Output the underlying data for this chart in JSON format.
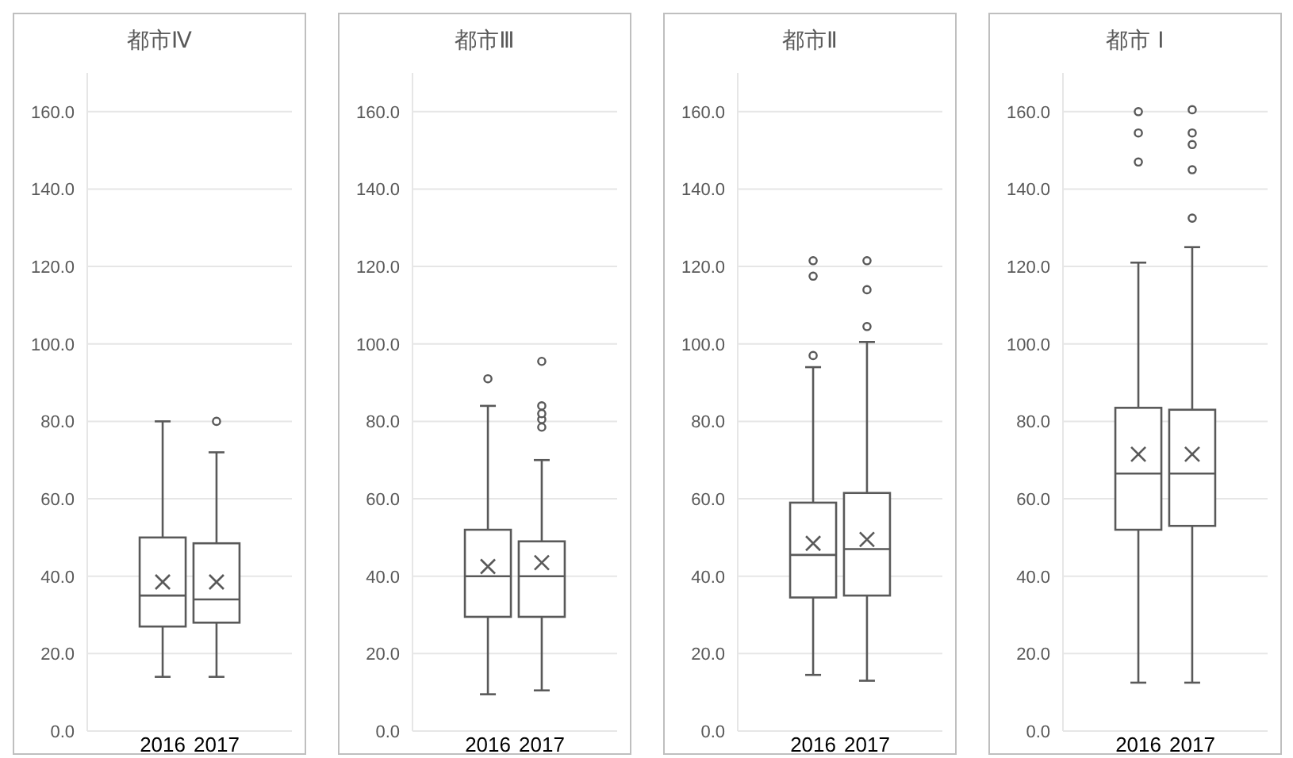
{
  "chart_data": [
    {
      "type": "box",
      "title": "都市Ⅳ",
      "categories": [
        "2016",
        "2017"
      ],
      "color": "#595959",
      "grid": "y",
      "ylim": [
        0,
        170
      ],
      "yticks": [
        {
          "value": 0,
          "label": "0.0"
        },
        {
          "value": 20,
          "label": "20.0"
        },
        {
          "value": 40,
          "label": "40.0"
        },
        {
          "value": 60,
          "label": "60.0"
        },
        {
          "value": 80,
          "label": "80.0"
        },
        {
          "value": 100,
          "label": "100.0"
        },
        {
          "value": 120,
          "label": "120.0"
        },
        {
          "value": 140,
          "label": "140.0"
        },
        {
          "value": 160,
          "label": "160.0"
        }
      ],
      "boxes": [
        {
          "low": 14,
          "q1": 27,
          "median": 35,
          "q3": 50,
          "high": 80,
          "mean": 38.5
        },
        {
          "low": 14,
          "q1": 28,
          "median": 34,
          "q3": 48.5,
          "high": 72,
          "mean": 38.5,
          "outliers": [
            80
          ]
        }
      ]
    },
    {
      "type": "box",
      "title": "都市Ⅲ",
      "categories": [
        "2016",
        "2017"
      ],
      "color": "#595959",
      "grid": "y",
      "ylim": [
        0,
        170
      ],
      "yticks": [
        {
          "value": 0,
          "label": "0.0"
        },
        {
          "value": 20,
          "label": "20.0"
        },
        {
          "value": 40,
          "label": "40.0"
        },
        {
          "value": 60,
          "label": "60.0"
        },
        {
          "value": 80,
          "label": "80.0"
        },
        {
          "value": 100,
          "label": "100.0"
        },
        {
          "value": 120,
          "label": "120.0"
        },
        {
          "value": 140,
          "label": "140.0"
        },
        {
          "value": 160,
          "label": "160.0"
        }
      ],
      "boxes": [
        {
          "low": 9.5,
          "q1": 29.5,
          "median": 40,
          "q3": 52,
          "high": 84,
          "mean": 42.5,
          "outliers": [
            91
          ]
        },
        {
          "low": 10.5,
          "q1": 29.5,
          "median": 40,
          "q3": 49,
          "high": 70,
          "mean": 43.5,
          "outliers": [
            78.5,
            80.5,
            82,
            84,
            95.5
          ]
        }
      ]
    },
    {
      "type": "box",
      "title": "都市Ⅱ",
      "categories": [
        "2016",
        "2017"
      ],
      "color": "#595959",
      "grid": "y",
      "ylim": [
        0,
        170
      ],
      "yticks": [
        {
          "value": 0,
          "label": "0.0"
        },
        {
          "value": 20,
          "label": "20.0"
        },
        {
          "value": 40,
          "label": "40.0"
        },
        {
          "value": 60,
          "label": "60.0"
        },
        {
          "value": 80,
          "label": "80.0"
        },
        {
          "value": 100,
          "label": "100.0"
        },
        {
          "value": 120,
          "label": "120.0"
        },
        {
          "value": 140,
          "label": "140.0"
        },
        {
          "value": 160,
          "label": "160.0"
        }
      ],
      "boxes": [
        {
          "low": 14.5,
          "q1": 34.5,
          "median": 45.5,
          "q3": 59,
          "high": 94,
          "mean": 48.5,
          "outliers": [
            97,
            117.5,
            121.5
          ]
        },
        {
          "low": 13,
          "q1": 35,
          "median": 47,
          "q3": 61.5,
          "high": 100.5,
          "mean": 49.5,
          "outliers": [
            104.5,
            114,
            121.5
          ]
        }
      ]
    },
    {
      "type": "box",
      "title": "都市 Ⅰ",
      "categories": [
        "2016",
        "2017"
      ],
      "color": "#595959",
      "grid": "y",
      "ylim": [
        0,
        170
      ],
      "yticks": [
        {
          "value": 0,
          "label": "0.0"
        },
        {
          "value": 20,
          "label": "20.0"
        },
        {
          "value": 40,
          "label": "40.0"
        },
        {
          "value": 60,
          "label": "60.0"
        },
        {
          "value": 80,
          "label": "80.0"
        },
        {
          "value": 100,
          "label": "100.0"
        },
        {
          "value": 120,
          "label": "120.0"
        },
        {
          "value": 140,
          "label": "140.0"
        },
        {
          "value": 160,
          "label": "160.0"
        }
      ],
      "boxes": [
        {
          "low": 12.5,
          "q1": 52,
          "median": 66.5,
          "q3": 83.5,
          "high": 121,
          "mean": 71.5,
          "outliers": [
            147,
            154.5,
            160
          ]
        },
        {
          "low": 12.5,
          "q1": 53,
          "median": 66.5,
          "q3": 83,
          "high": 125,
          "mean": 71.5,
          "outliers": [
            132.5,
            145,
            151.5,
            154.5,
            160.5
          ]
        }
      ]
    }
  ]
}
